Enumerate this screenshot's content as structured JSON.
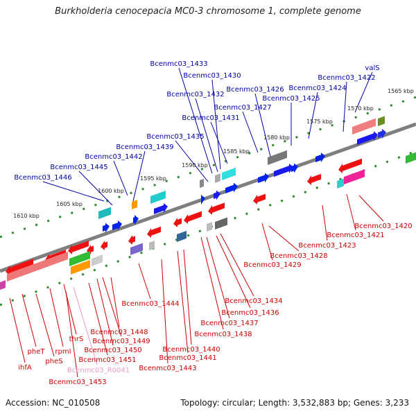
{
  "title": "Burkholderia cenocepacia MC0-3 chromosome 1, complete genome",
  "footer": {
    "accession": "Accession: NC_010508",
    "topology": "Topology: circular; Length: 3,532,883 bp; Genes: 3,233"
  },
  "colors": {
    "forward_label": "#0000aa",
    "reverse_label": "#cc0000",
    "rna_label": "#e79ac9",
    "backbone": "#7f7f7f",
    "scale_dots": "#2f8a2f"
  },
  "kbp_ticks": [
    "1565 kbp",
    "1570 kbp",
    "1575 kbp",
    "1580 kbp",
    "1585 kbp",
    "1590 kbp",
    "1595 kbp",
    "1600 kbp",
    "1605 kbp",
    "1610 kbp"
  ],
  "forward_genes": [
    "valS",
    "Bcenmc03_1422",
    "Bcenmc03_1424",
    "Bcenmc03_1425",
    "Bcenmc03_1426",
    "Bcenmc03_1427",
    "Bcenmc03_1430",
    "Bcenmc03_1431",
    "Bcenmc03_1432",
    "Bcenmc03_1433",
    "Bcenmc03_1435",
    "Bcenmc03_1439",
    "Bcenmc03_1442",
    "Bcenmc03_1445",
    "Bcenmc03_1446"
  ],
  "reverse_genes": [
    "Bcenmc03_1420",
    "Bcenmc03_1421",
    "Bcenmc03_1423",
    "Bcenmc03_1428",
    "Bcenmc03_1429",
    "Bcenmc03_1434",
    "Bcenmc03_1436",
    "Bcenmc03_1437",
    "Bcenmc03_1438",
    "Bcenmc03_1440",
    "Bcenmc03_1441",
    "Bcenmc03_1443",
    "Bcenmc03_1444",
    "Bcenmc03_1448",
    "Bcenmc03_1449",
    "Bcenmc03_1450",
    "Bcenmc03_1451",
    "Bcenmc03_1453",
    "thrS",
    "rpmI",
    "pheT",
    "pheS",
    "ihfA"
  ],
  "rna_genes": [
    "Bcenmc03_R0041"
  ]
}
